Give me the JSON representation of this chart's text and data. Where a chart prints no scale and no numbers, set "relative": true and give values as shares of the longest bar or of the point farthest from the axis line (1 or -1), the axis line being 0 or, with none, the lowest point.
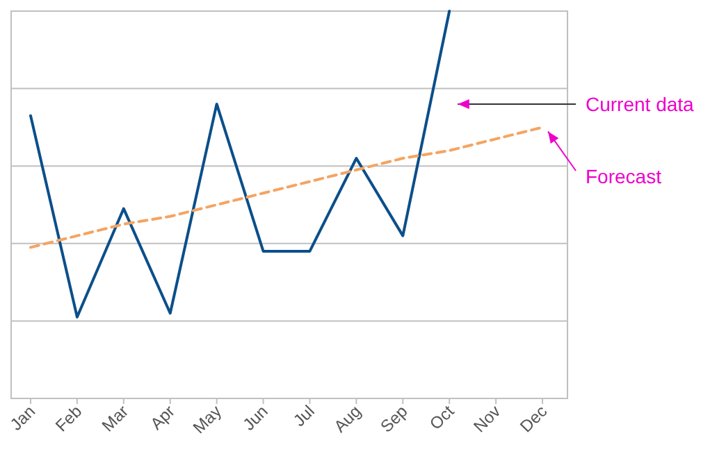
{
  "chart_data": {
    "type": "line",
    "relative": true,
    "grid": true,
    "categories": [
      "Jan",
      "Feb",
      "Mar",
      "Apr",
      "May",
      "Jun",
      "Jul",
      "Aug",
      "Sep",
      "Oct",
      "Nov",
      "Dec"
    ],
    "series": [
      {
        "name": "Current data",
        "color": "#0b4f8a",
        "line_style": "solid",
        "values": [
          0.73,
          0.21,
          0.49,
          0.22,
          0.76,
          0.38,
          0.38,
          0.62,
          0.42,
          1,
          null,
          null
        ]
      },
      {
        "name": "Forecast",
        "color": "#f4a462",
        "line_style": "dashed",
        "values": [
          0.39,
          0.42,
          0.45,
          0.47,
          0.5,
          0.53,
          0.56,
          0.59,
          0.62,
          0.64,
          0.67,
          0.7
        ]
      }
    ]
  }
}
